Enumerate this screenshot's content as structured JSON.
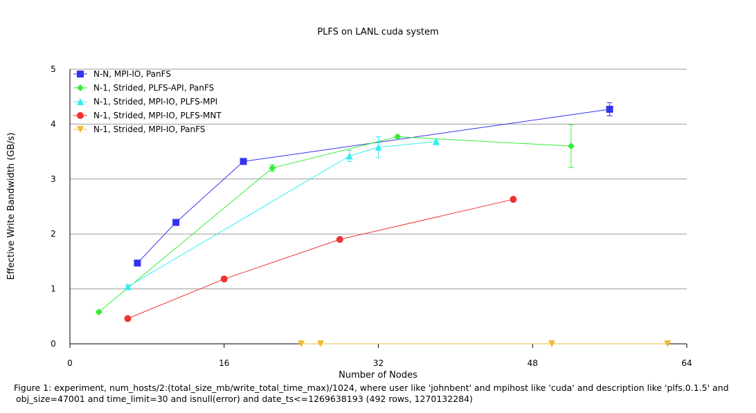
{
  "chart_data": {
    "type": "line",
    "title": "PLFS on LANL cuda system",
    "xlabel": "Number of Nodes",
    "ylabel": "Effective Write Bandwidth (GB/s)",
    "xlim": [
      0,
      64
    ],
    "ylim": [
      0,
      5
    ],
    "xticks": [
      "0",
      "16",
      "32",
      "48",
      "64"
    ],
    "yticks": [
      "0",
      "1",
      "2",
      "3",
      "4",
      "5"
    ],
    "grid": "horizontal",
    "legend_position": "top-left",
    "series": [
      {
        "name": "N-N, MPI-IO, PanFS",
        "color": "#3333ee",
        "marker": "square",
        "points": [
          {
            "x": 7,
            "y": 1.47,
            "err": 0.03
          },
          {
            "x": 11,
            "y": 2.21,
            "err": 0.03
          },
          {
            "x": 18,
            "y": 3.32,
            "err": 0.03
          },
          {
            "x": 56,
            "y": 4.27,
            "err": 0.12
          }
        ]
      },
      {
        "name": "N-1, Strided, PLFS-API, PanFS",
        "color": "#33ee33",
        "marker": "diamond",
        "points": [
          {
            "x": 3,
            "y": 0.58,
            "err": 0.02
          },
          {
            "x": 21,
            "y": 3.2,
            "err": 0.06
          },
          {
            "x": 34,
            "y": 3.77,
            "err": 0.02
          },
          {
            "x": 52,
            "y": 3.6,
            "err": 0.39
          }
        ]
      },
      {
        "name": "N-1, Strided, MPI-IO, PLFS-MPI",
        "color": "#33eeee",
        "marker": "triangle-up",
        "points": [
          {
            "x": 6,
            "y": 1.04,
            "err": 0.03
          },
          {
            "x": 29,
            "y": 3.42,
            "err": 0.1
          },
          {
            "x": 32,
            "y": 3.58,
            "err": 0.19
          },
          {
            "x": 38,
            "y": 3.68,
            "err": 0.03
          }
        ]
      },
      {
        "name": "N-1, Strided, MPI-IO, PLFS-MNT",
        "color": "#ee3333",
        "marker": "circle",
        "points": [
          {
            "x": 6,
            "y": 0.46,
            "err": 0
          },
          {
            "x": 16,
            "y": 1.18,
            "err": 0
          },
          {
            "x": 28,
            "y": 1.9,
            "err": 0
          },
          {
            "x": 46,
            "y": 2.63,
            "err": 0
          }
        ]
      },
      {
        "name": "N-1, Strided, MPI-IO, PanFS",
        "color": "#eebb33",
        "marker": "triangle-down",
        "points": [
          {
            "x": 24,
            "y": 0.0,
            "err": 0
          },
          {
            "x": 26,
            "y": 0.0,
            "err": 0
          },
          {
            "x": 50,
            "y": 0.0,
            "err": 0
          },
          {
            "x": 62,
            "y": 0.0,
            "err": 0
          }
        ]
      }
    ]
  },
  "caption": {
    "line1": "Figure 1: experiment, num_hosts/2:(total_size_mb/write_total_time_max)/1024, where user like 'johnbent' and mpihost like 'cuda' and description like 'plfs.0.1.5' and",
    "line2": "obj_size=47001 and time_limit=30 and isnull(error) and date_ts<=1269638193 (492 rows, 1270132284)"
  }
}
